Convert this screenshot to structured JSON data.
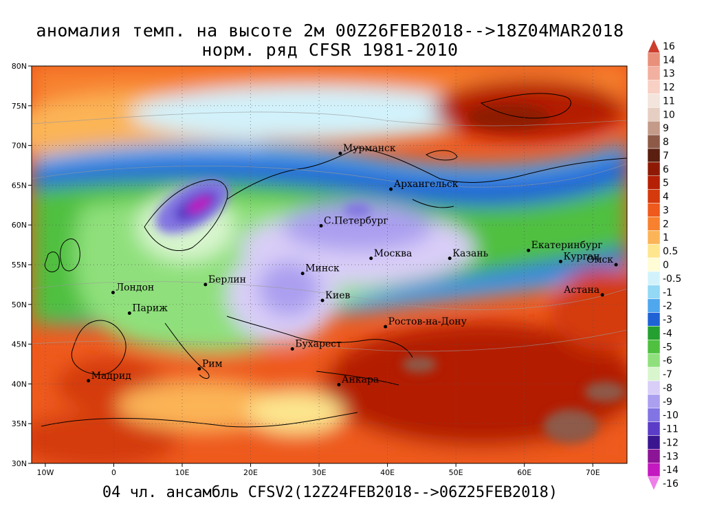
{
  "title": {
    "line1": "аномалия темп. на высоте 2м 00Z26FEB2018-->18Z04MAR2018",
    "line2": "норм. ряд CFSR 1981-2010"
  },
  "footer": "04 чл. ансамбль CFSV2(12Z24FEB2018-->06Z25FEB2018)",
  "map": {
    "lon_range": [
      -12,
      75
    ],
    "lat_range": [
      30,
      80
    ],
    "lon_ticks": [
      {
        "value": -10,
        "label": "10W"
      },
      {
        "value": 0,
        "label": "0"
      },
      {
        "value": 10,
        "label": "10E"
      },
      {
        "value": 20,
        "label": "20E"
      },
      {
        "value": 30,
        "label": "30E"
      },
      {
        "value": 40,
        "label": "40E"
      },
      {
        "value": 50,
        "label": "50E"
      },
      {
        "value": 60,
        "label": "60E"
      },
      {
        "value": 70,
        "label": "70E"
      }
    ],
    "lat_ticks": [
      {
        "value": 30,
        "label": "30N"
      },
      {
        "value": 35,
        "label": "35N"
      },
      {
        "value": 40,
        "label": "40N"
      },
      {
        "value": 45,
        "label": "45N"
      },
      {
        "value": 50,
        "label": "50N"
      },
      {
        "value": 55,
        "label": "55N"
      },
      {
        "value": 60,
        "label": "60N"
      },
      {
        "value": 65,
        "label": "65N"
      },
      {
        "value": 70,
        "label": "70N"
      },
      {
        "value": 75,
        "label": "75N"
      },
      {
        "value": 80,
        "label": "80N"
      }
    ],
    "cities": [
      {
        "name": "Мурманск",
        "lon": 33.1,
        "lat": 69.0
      },
      {
        "name": "Архангельск",
        "lon": 40.5,
        "lat": 64.5
      },
      {
        "name": "С.Петербург",
        "lon": 30.3,
        "lat": 59.9
      },
      {
        "name": "Москва",
        "lon": 37.6,
        "lat": 55.8
      },
      {
        "name": "Казань",
        "lon": 49.1,
        "lat": 55.8
      },
      {
        "name": "Екатеринбург",
        "lon": 60.6,
        "lat": 56.8
      },
      {
        "name": "Курган",
        "lon": 65.3,
        "lat": 55.4
      },
      {
        "name": "Омск",
        "lon": 73.4,
        "lat": 55.0
      },
      {
        "name": "Астана",
        "lon": 71.4,
        "lat": 51.2
      },
      {
        "name": "Минск",
        "lon": 27.6,
        "lat": 53.9
      },
      {
        "name": "Киев",
        "lon": 30.5,
        "lat": 50.5
      },
      {
        "name": "Ростов-на-Дону",
        "lon": 39.7,
        "lat": 47.2
      },
      {
        "name": "Берлин",
        "lon": 13.4,
        "lat": 52.5
      },
      {
        "name": "Лондон",
        "lon": -0.1,
        "lat": 51.5
      },
      {
        "name": "Париж",
        "lon": 2.3,
        "lat": 48.9
      },
      {
        "name": "Бухарест",
        "lon": 26.1,
        "lat": 44.4
      },
      {
        "name": "Рим",
        "lon": 12.5,
        "lat": 41.9
      },
      {
        "name": "Мадрид",
        "lon": -3.7,
        "lat": 40.4
      },
      {
        "name": "Анкара",
        "lon": 32.9,
        "lat": 39.9
      }
    ]
  },
  "colorbar": {
    "levels": [
      {
        "label": "16",
        "color": "#cc3d2e"
      },
      {
        "label": "14",
        "color": "#e8907a"
      },
      {
        "label": "13",
        "color": "#f2b0a0"
      },
      {
        "label": "12",
        "color": "#f8d0c4"
      },
      {
        "label": "11",
        "color": "#f3e4dc"
      },
      {
        "label": "10",
        "color": "#e6cfc2"
      },
      {
        "label": "9",
        "color": "#c49a88"
      },
      {
        "label": "8",
        "color": "#8e5a48"
      },
      {
        "label": "7",
        "color": "#5a1f10"
      },
      {
        "label": "6",
        "color": "#8e1a05"
      },
      {
        "label": "5",
        "color": "#b41f05"
      },
      {
        "label": "4",
        "color": "#d43a0c"
      },
      {
        "label": "3",
        "color": "#ee5a1c"
      },
      {
        "label": "2",
        "color": "#f7812e"
      },
      {
        "label": "1",
        "color": "#fbb457"
      },
      {
        "label": "0.5",
        "color": "#fde68e"
      },
      {
        "label": "0",
        "color": "#fffcd6"
      },
      {
        "label": "-0.5",
        "color": "#d2f2fb"
      },
      {
        "label": "-1",
        "color": "#93d8f5"
      },
      {
        "label": "-2",
        "color": "#4fa7ee"
      },
      {
        "label": "-3",
        "color": "#1f62d6"
      },
      {
        "label": "-4",
        "color": "#25a030"
      },
      {
        "label": "-5",
        "color": "#4fc040"
      },
      {
        "label": "-6",
        "color": "#8fe07c"
      },
      {
        "label": "-7",
        "color": "#d8f5ce"
      },
      {
        "label": "-8",
        "color": "#d9cef7"
      },
      {
        "label": "-9",
        "color": "#ab9ff0"
      },
      {
        "label": "-10",
        "color": "#8274e2"
      },
      {
        "label": "-11",
        "color": "#5a3cc8"
      },
      {
        "label": "-12",
        "color": "#3a1590"
      },
      {
        "label": "-13",
        "color": "#8c1496"
      },
      {
        "label": "-14",
        "color": "#c418c0"
      },
      {
        "label": "-16",
        "color": "#ee7ee8"
      }
    ]
  }
}
